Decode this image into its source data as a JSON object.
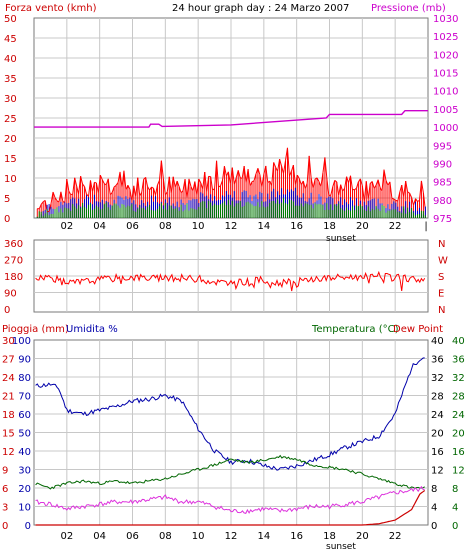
{
  "header": {
    "left_label": "Forza vento (kmh)",
    "title": "24 hour graph day : 24 Marzo 2007",
    "right_label": "Pressione (mb)"
  },
  "colors": {
    "wind": "#ff0000",
    "wind_gust": "#dd0000",
    "wind_blue": "#0000cc",
    "wind_green": "#008000",
    "pressure": "#cc00cc",
    "humidity": "#0000aa",
    "temperature": "#006600",
    "dewpoint": "#ff0000",
    "rain": "#cc0000",
    "rain_pink": "#dd33dd",
    "grid": "#c8c8c8",
    "background": "#ffffff"
  },
  "chart_data": [
    {
      "type": "line",
      "title": "24 hour graph day : 24 Marzo 2007",
      "ylabel": "Forza vento (kmh)",
      "ylabel_right": "Pressione (mb)",
      "ylim": [
        0,
        50
      ],
      "ylim_right": [
        975,
        1030
      ],
      "yticks": [
        0,
        5,
        10,
        15,
        20,
        25,
        30,
        35,
        40,
        45,
        50
      ],
      "yticks_right": [
        975,
        980,
        985,
        990,
        995,
        1000,
        1005,
        1010,
        1015,
        1020,
        1025,
        1030
      ],
      "x_tick_labels": [
        "02",
        "04",
        "06",
        "08",
        "10",
        "12",
        "14",
        "16",
        "18",
        "20",
        "22"
      ],
      "x_annotation": "sunset",
      "grid": true,
      "series": [
        {
          "name": "Pressione (mb)",
          "axis": "right",
          "x": [
            0,
            7.0,
            7.1,
            7.6,
            7.8,
            12.0,
            17.8,
            18.0,
            22.4,
            22.6,
            24
          ],
          "y": [
            1000.0,
            1000.0,
            1000.8,
            1000.8,
            1000.2,
            1000.6,
            1002.5,
            1003.5,
            1003.5,
            1004.5,
            1004.5
          ]
        },
        {
          "name": "Forza vento (kmh)",
          "axis": "left",
          "x": [
            0,
            1,
            2,
            3,
            4,
            5,
            6,
            7,
            8,
            9,
            10,
            11,
            12,
            13,
            14,
            15,
            16,
            17,
            18,
            19,
            20,
            21,
            22,
            23,
            24
          ],
          "y": [
            2,
            4,
            7,
            8,
            9,
            8,
            7,
            8,
            8,
            7,
            9,
            10,
            11,
            10,
            10,
            12,
            11,
            9,
            8,
            8,
            7,
            7,
            6,
            5,
            4
          ]
        }
      ]
    },
    {
      "type": "line",
      "ylabel_right": "N W S E N",
      "ylim": [
        0,
        360
      ],
      "yticks": [
        0,
        90,
        180,
        270,
        360
      ],
      "compass_labels": [
        "N",
        "W",
        "S",
        "E",
        "N"
      ],
      "series": [
        {
          "name": "direction",
          "x": [
            0,
            1,
            2,
            3,
            4,
            5,
            6,
            7,
            8,
            9,
            10,
            11,
            12,
            13,
            14,
            15,
            16,
            17,
            18,
            19,
            20,
            21,
            22,
            23,
            24
          ],
          "y": [
            170,
            175,
            140,
            150,
            160,
            170,
            175,
            170,
            165,
            170,
            165,
            150,
            140,
            150,
            160,
            140,
            150,
            165,
            170,
            175,
            175,
            180,
            170,
            165,
            160
          ]
        }
      ]
    },
    {
      "type": "line",
      "legend_left": [
        "Pioggia (mm)",
        "Umidita %"
      ],
      "legend_right": [
        "Temperatura (°C)",
        "Dew Point"
      ],
      "rain_ticks": [
        0,
        3,
        6,
        9,
        12,
        15,
        18,
        21,
        24,
        27,
        30
      ],
      "humidity_ticks": [
        0,
        10,
        20,
        30,
        40,
        50,
        60,
        70,
        80,
        90,
        100
      ],
      "temp_left_ticks": [
        0,
        4,
        8,
        12,
        16,
        20,
        24,
        28,
        32,
        36,
        40
      ],
      "temp_right_ticks": [
        0,
        4,
        8,
        12,
        16,
        20,
        24,
        28,
        32,
        36,
        40
      ],
      "ylim_temp": [
        0,
        40
      ],
      "series": [
        {
          "name": "Umidita %",
          "x": [
            0,
            1,
            1.5,
            2,
            3,
            4,
            5,
            6,
            7,
            8,
            9,
            10,
            11,
            12,
            13,
            14,
            15,
            16,
            17,
            18,
            19,
            20,
            21,
            22,
            23,
            23.5,
            24
          ],
          "y": [
            75,
            76,
            74,
            62,
            60,
            62,
            64,
            67,
            68,
            70,
            67,
            52,
            40,
            34,
            35,
            32,
            30,
            32,
            35,
            38,
            42,
            45,
            48,
            60,
            85,
            90,
            91
          ]
        },
        {
          "name": "Temperatura (°C)",
          "x": [
            0,
            1,
            2,
            3,
            4,
            5,
            6,
            7,
            8,
            9,
            10,
            11,
            12,
            13,
            14,
            15,
            16,
            17,
            18,
            19,
            20,
            21,
            22,
            23,
            24
          ],
          "y": [
            9,
            8,
            9,
            9.5,
            9,
            9.5,
            9,
            9.5,
            10,
            11,
            12,
            13,
            14.2,
            13.5,
            14,
            14.8,
            14.2,
            13,
            12.5,
            12,
            11,
            10,
            9,
            8,
            8
          ]
        },
        {
          "name": "Dew Point",
          "x": [
            0,
            1,
            2,
            3,
            4,
            5,
            6,
            7,
            8,
            9,
            10,
            11,
            12,
            13,
            14,
            15,
            16,
            17,
            18,
            19,
            20,
            21,
            22,
            23,
            24
          ],
          "y": [
            5,
            4.5,
            3.5,
            4,
            4.5,
            5,
            5,
            5.5,
            6,
            5,
            5,
            4,
            3,
            3,
            3.5,
            3,
            3.5,
            4,
            4,
            4.5,
            5,
            6,
            7,
            7.5,
            8
          ]
        },
        {
          "name": "Pioggia (mm)",
          "x": [
            0,
            20,
            21,
            22,
            23,
            23.5,
            24
          ],
          "y": [
            0,
            0,
            0.2,
            0.8,
            2.5,
            5,
            6
          ]
        }
      ]
    }
  ]
}
